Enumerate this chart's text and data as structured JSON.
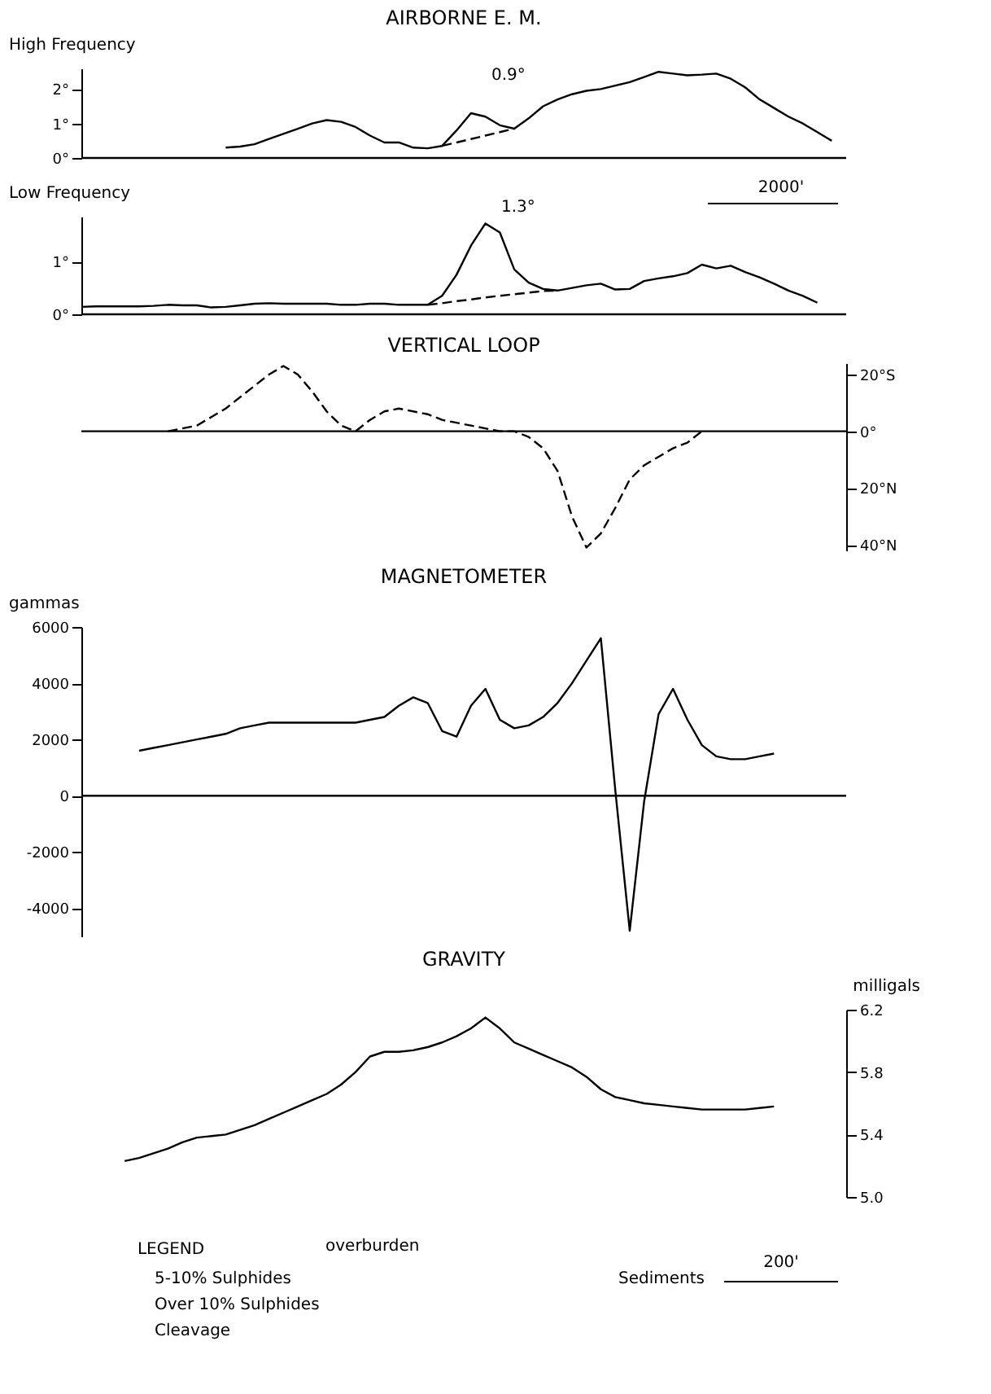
{
  "chart_data": [
    {
      "type": "line",
      "title": "AIRBORNE E. M.",
      "ylabel": "High Frequency",
      "tick_labels": "y",
      "categories": [
        null,
        null,
        null,
        null,
        null,
        null,
        null,
        null,
        null,
        null,
        null,
        null,
        null,
        null,
        null,
        null,
        null,
        null,
        null,
        null,
        null,
        null,
        null,
        null,
        null,
        null,
        null,
        null,
        null,
        null,
        null,
        null,
        null,
        null,
        null,
        null,
        null,
        null,
        null,
        null,
        null,
        null,
        null,
        null,
        null,
        null,
        null,
        null,
        null,
        null,
        null,
        null,
        null,
        null
      ],
      "series": [
        {
          "color": "#000000",
          "line_style": "solid",
          "values": [
            null,
            null,
            null,
            null,
            null,
            null,
            null,
            null,
            null,
            null,
            0.3,
            0.33,
            0.4,
            0.55,
            0.7,
            0.85,
            1.0,
            1.1,
            1.05,
            0.9,
            0.65,
            0.45,
            0.45,
            0.3,
            0.28,
            0.35,
            0.8,
            1.3,
            1.2,
            0.95,
            0.85,
            1.15,
            1.5,
            1.7,
            1.85,
            1.95,
            2.0,
            2.1,
            2.2,
            2.35,
            2.5,
            2.45,
            2.4,
            2.42,
            2.45,
            2.3,
            2.05,
            1.7,
            1.45,
            1.2,
            1.0,
            0.75,
            0.5,
            null
          ]
        },
        {
          "color": "#000000",
          "line_style": "dashed",
          "values": [
            null,
            null,
            null,
            null,
            null,
            null,
            null,
            null,
            null,
            null,
            null,
            null,
            null,
            null,
            null,
            null,
            null,
            null,
            null,
            null,
            null,
            null,
            null,
            null,
            null,
            0.35,
            0.45,
            0.55,
            0.65,
            0.75,
            0.85,
            null,
            null,
            null,
            null,
            null,
            null,
            null,
            null,
            null,
            null,
            null,
            null,
            null,
            null,
            null,
            null,
            null,
            null,
            null,
            null,
            null,
            null,
            null
          ]
        }
      ],
      "ylim": [
        0,
        2.6
      ],
      "yticks": [
        {
          "value": 0,
          "label": "0°"
        },
        {
          "value": 1,
          "label": "1°"
        },
        {
          "value": 2,
          "label": "2°"
        }
      ],
      "ref_lines": [
        {
          "axis": "y",
          "value": 0
        }
      ],
      "annotations": [
        "0.9°"
      ]
    },
    {
      "type": "line",
      "ylabel": "Low Frequency",
      "tick_labels": "y",
      "categories": [
        null,
        null,
        null,
        null,
        null,
        null,
        null,
        null,
        null,
        null,
        null,
        null,
        null,
        null,
        null,
        null,
        null,
        null,
        null,
        null,
        null,
        null,
        null,
        null,
        null,
        null,
        null,
        null,
        null,
        null,
        null,
        null,
        null,
        null,
        null,
        null,
        null,
        null,
        null,
        null,
        null,
        null,
        null,
        null,
        null,
        null,
        null,
        null,
        null,
        null,
        null,
        null,
        null,
        null
      ],
      "series": [
        {
          "color": "#000000",
          "line_style": "solid",
          "values": [
            0.14,
            0.15,
            0.15,
            0.15,
            0.15,
            0.16,
            0.18,
            0.17,
            0.17,
            0.13,
            0.14,
            0.17,
            0.2,
            0.21,
            0.2,
            0.2,
            0.2,
            0.2,
            0.18,
            0.18,
            0.2,
            0.2,
            0.18,
            0.18,
            0.18,
            0.35,
            0.75,
            1.3,
            1.72,
            1.55,
            0.85,
            0.6,
            0.48,
            0.45,
            0.5,
            0.55,
            0.58,
            0.47,
            0.48,
            0.63,
            0.68,
            0.72,
            0.78,
            0.94,
            0.87,
            0.92,
            0.8,
            0.7,
            0.58,
            0.45,
            0.35,
            0.22,
            null,
            null
          ]
        },
        {
          "color": "#000000",
          "line_style": "dashed",
          "values": [
            null,
            null,
            null,
            null,
            null,
            null,
            null,
            null,
            null,
            null,
            null,
            null,
            null,
            null,
            null,
            null,
            null,
            null,
            null,
            null,
            null,
            null,
            null,
            null,
            0.18,
            0.21,
            0.25,
            0.28,
            0.32,
            0.35,
            0.38,
            0.41,
            0.44,
            0.45,
            null,
            null,
            null,
            null,
            null,
            null,
            null,
            null,
            null,
            null,
            null,
            null,
            null,
            null,
            null,
            null,
            null,
            null,
            null,
            null
          ]
        }
      ],
      "ylim": [
        0,
        1.85
      ],
      "yticks": [
        {
          "value": 0,
          "label": "0°"
        },
        {
          "value": 1,
          "label": "1°"
        }
      ],
      "ref_lines": [
        {
          "axis": "y",
          "value": 0
        }
      ],
      "annotations": [
        "1.3°",
        "2000'"
      ]
    },
    {
      "type": "line",
      "title": "VERTICAL LOOP",
      "tick_labels": "y",
      "categories": [
        null,
        null,
        null,
        null,
        null,
        null,
        null,
        null,
        null,
        null,
        null,
        null,
        null,
        null,
        null,
        null,
        null,
        null,
        null,
        null,
        null,
        null,
        null,
        null,
        null,
        null,
        null,
        null,
        null,
        null,
        null,
        null,
        null,
        null,
        null,
        null,
        null,
        null,
        null,
        null,
        null,
        null,
        null,
        null,
        null,
        null,
        null,
        null,
        null,
        null,
        null,
        null,
        null,
        null
      ],
      "series": [
        {
          "color": "#000000",
          "line_style": "dashed",
          "values": [
            null,
            null,
            null,
            null,
            null,
            null,
            0,
            1,
            2,
            5,
            8,
            12,
            16,
            20,
            23,
            20,
            14,
            7,
            2,
            0,
            4,
            7,
            8,
            7,
            6,
            4,
            3,
            2,
            1,
            0,
            0,
            -2,
            -6,
            -14,
            -30,
            -41,
            -36,
            -27,
            -17,
            -12,
            -9,
            -6,
            -4,
            0,
            null,
            null,
            null,
            null,
            null,
            null,
            null,
            null,
            null,
            null
          ]
        }
      ],
      "ylim": [
        -42,
        24
      ],
      "yticks": [
        {
          "value": 20,
          "label": "20°S"
        },
        {
          "value": 0,
          "label": "0°"
        },
        {
          "value": -20,
          "label": "20°N"
        },
        {
          "value": -40,
          "label": "40°N"
        }
      ],
      "ref_lines": [
        {
          "axis": "y",
          "value": 0
        }
      ]
    },
    {
      "type": "line",
      "title": "MAGNETOMETER",
      "ylabel": "gammas",
      "tick_labels": "y",
      "categories": [
        null,
        null,
        null,
        null,
        null,
        null,
        null,
        null,
        null,
        null,
        null,
        null,
        null,
        null,
        null,
        null,
        null,
        null,
        null,
        null,
        null,
        null,
        null,
        null,
        null,
        null,
        null,
        null,
        null,
        null,
        null,
        null,
        null,
        null,
        null,
        null,
        null,
        null,
        null,
        null,
        null,
        null,
        null,
        null,
        null,
        null,
        null,
        null,
        null,
        null,
        null,
        null,
        null,
        null
      ],
      "series": [
        {
          "color": "#000000",
          "line_style": "solid",
          "values": [
            null,
            null,
            null,
            null,
            1600,
            1700,
            1800,
            1900,
            2000,
            2100,
            2200,
            2400,
            2500,
            2600,
            2600,
            2600,
            2600,
            2600,
            2600,
            2600,
            2700,
            2800,
            3200,
            3500,
            3300,
            2300,
            2100,
            3200,
            3800,
            2700,
            2400,
            2500,
            2800,
            3300,
            4000,
            4800,
            5600,
            200,
            -4800,
            -200,
            2900,
            3800,
            2700,
            1800,
            1400,
            1300,
            1300,
            1400,
            1500,
            null,
            null,
            null,
            null,
            null
          ]
        }
      ],
      "ylim": [
        -5000,
        6000
      ],
      "yticks": [
        6000,
        4000,
        2000,
        0,
        -2000,
        -4000
      ],
      "ref_lines": [
        {
          "axis": "y",
          "value": 0
        }
      ]
    },
    {
      "type": "line",
      "title": "GRAVITY",
      "ylabel": "milligals",
      "tick_labels": "y",
      "categories": [
        null,
        null,
        null,
        null,
        null,
        null,
        null,
        null,
        null,
        null,
        null,
        null,
        null,
        null,
        null,
        null,
        null,
        null,
        null,
        null,
        null,
        null,
        null,
        null,
        null,
        null,
        null,
        null,
        null,
        null,
        null,
        null,
        null,
        null,
        null,
        null,
        null,
        null,
        null,
        null,
        null,
        null,
        null,
        null,
        null,
        null,
        null,
        null,
        null,
        null,
        null,
        null,
        null,
        null
      ],
      "series": [
        {
          "color": "#000000",
          "line_style": "solid",
          "values": [
            null,
            null,
            null,
            5.23,
            5.25,
            5.28,
            5.31,
            5.35,
            5.38,
            5.39,
            5.4,
            5.43,
            5.46,
            5.5,
            5.54,
            5.58,
            5.62,
            5.66,
            5.72,
            5.8,
            5.9,
            5.93,
            5.93,
            5.94,
            5.96,
            5.99,
            6.03,
            6.08,
            6.15,
            6.08,
            5.99,
            5.95,
            5.91,
            5.87,
            5.83,
            5.77,
            5.69,
            5.64,
            5.62,
            5.6,
            5.59,
            5.58,
            5.57,
            5.56,
            5.56,
            5.56,
            5.56,
            5.57,
            5.58,
            null,
            null,
            null,
            null,
            null
          ]
        }
      ],
      "ylim": [
        5.0,
        6.2
      ],
      "yticks": [
        {
          "value": 6.2,
          "label": "6.2"
        },
        {
          "value": 5.8,
          "label": "5.8"
        },
        {
          "value": 5.4,
          "label": "5.4"
        },
        {
          "value": 5.0,
          "label": "5.0"
        }
      ],
      "annotations": [
        "overburden",
        "Sediments",
        "LEGEND",
        "5-10% Sulphides",
        "Over 10% Sulphides",
        "Cleavage",
        "200'"
      ]
    }
  ]
}
